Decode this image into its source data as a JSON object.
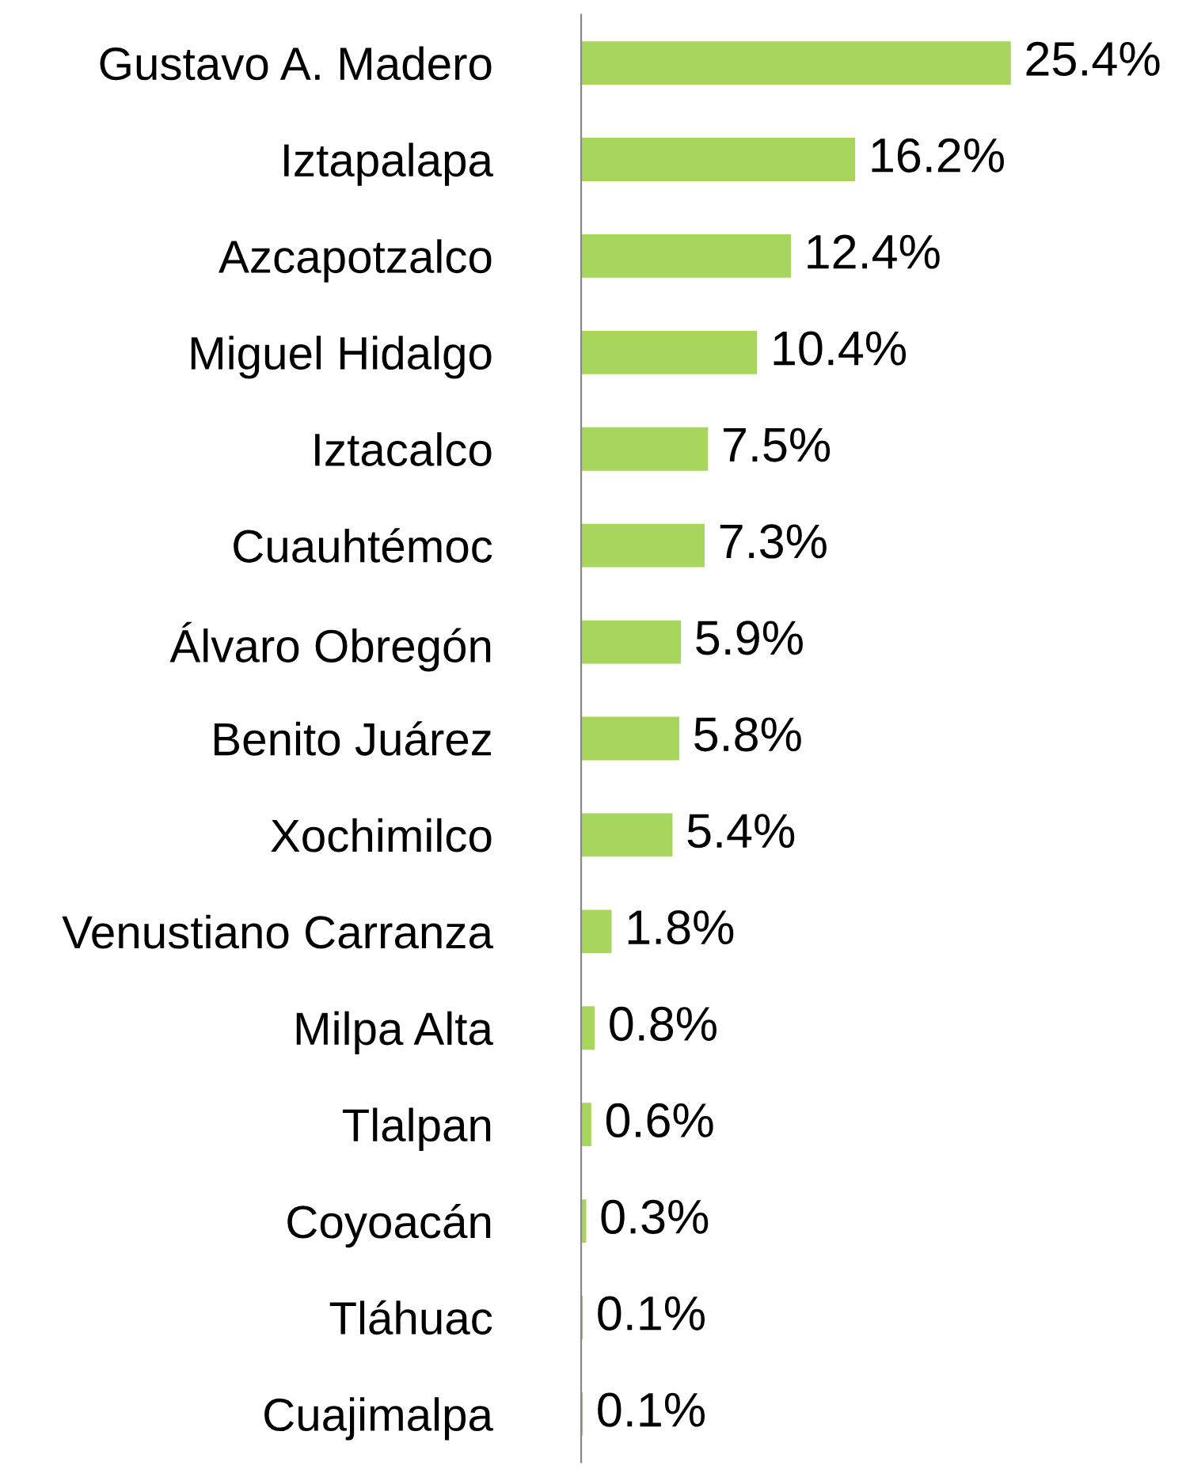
{
  "chart_data": {
    "type": "bar",
    "orientation": "horizontal",
    "categories": [
      "Gustavo A. Madero",
      "Iztapalapa",
      "Azcapotzalco",
      "Miguel Hidalgo",
      "Iztacalco",
      "Cuauhtémoc",
      "Álvaro Obregón",
      "Benito Juárez",
      "Xochimilco",
      "Venustiano Carranza",
      "Milpa Alta",
      "Tlalpan",
      "Coyoacán",
      "Tláhuac",
      "Cuajimalpa"
    ],
    "values": [
      25.4,
      16.2,
      12.4,
      10.4,
      7.5,
      7.3,
      5.9,
      5.8,
      5.4,
      1.8,
      0.8,
      0.6,
      0.3,
      0.1,
      0.1
    ],
    "value_labels": [
      "25.4%",
      "16.2%",
      "12.4%",
      "10.4%",
      "7.5%",
      "7.3%",
      "5.9%",
      "5.8%",
      "5.4%",
      "1.8%",
      "0.8%",
      "0.6%",
      "0.3%",
      "0.1%",
      "0.1%"
    ],
    "color": "#a8d65c",
    "grid": false,
    "legend": false
  }
}
